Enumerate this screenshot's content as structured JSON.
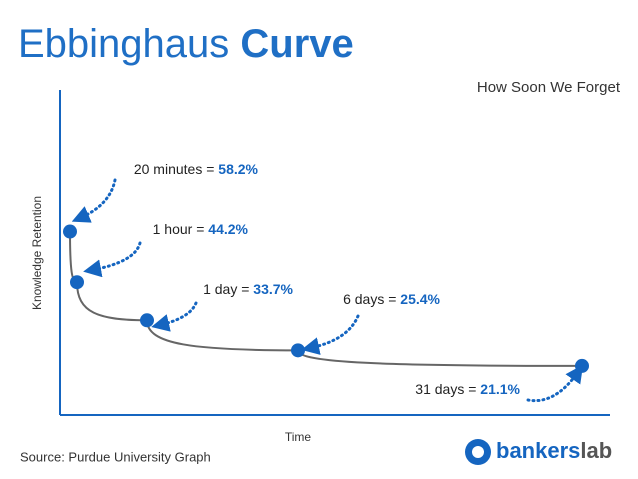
{
  "chart_data": {
    "type": "line",
    "title": "Ebbinghaus",
    "title_emphasis": "Curve",
    "subtitle": "How Soon We Forget",
    "x_label": "Time",
    "y_label": "Knowledge Retention",
    "categories": [
      "20 minutes",
      "1 hour",
      "1 day",
      "6 days",
      "31 days"
    ],
    "values": [
      58.2,
      44.2,
      33.7,
      25.4,
      21.1
    ],
    "value_labels": [
      "58.2%",
      "44.2%",
      "33.7%",
      "25.4%",
      "21.1%"
    ],
    "color": "#1565c0",
    "line_color": "#666666",
    "ylim": [
      15,
      60
    ],
    "source": "Source: Purdue University Graph",
    "logo": {
      "word1": "bankers",
      "word2": "lab"
    }
  }
}
